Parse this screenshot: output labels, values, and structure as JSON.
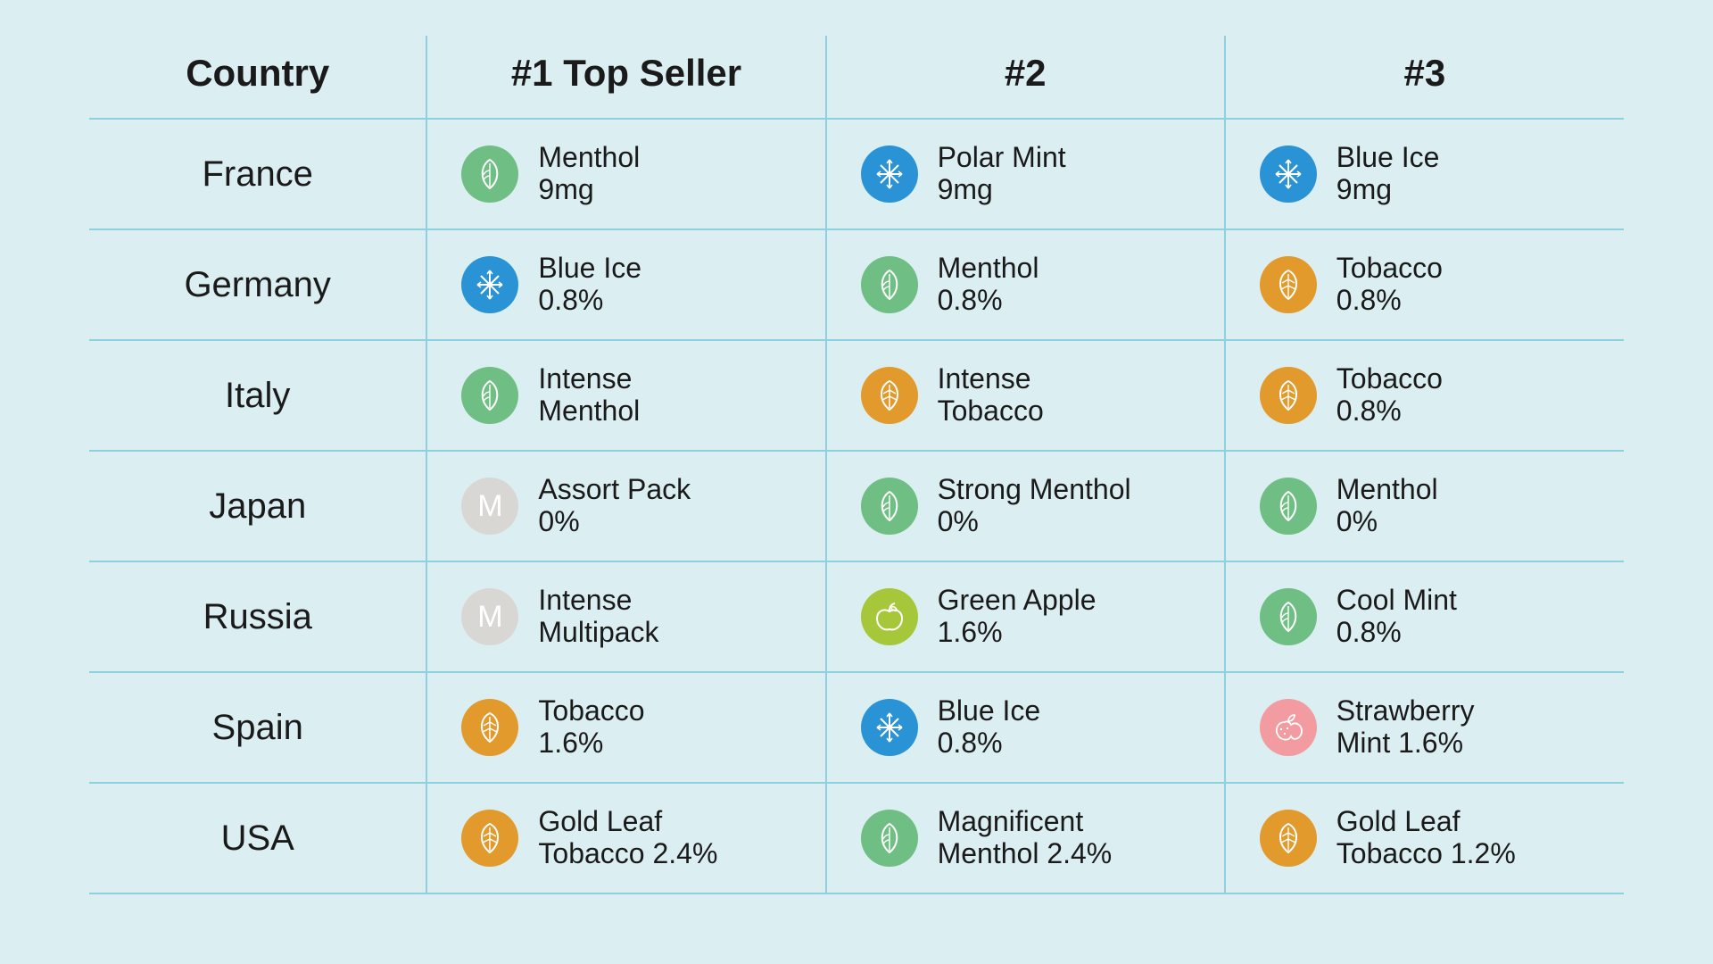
{
  "colors": {
    "background": "#dbeef2",
    "border": "#8ecfe0",
    "text": "#1a1a1a",
    "icon_green": "#6fbe83",
    "icon_blue": "#2a93d6",
    "icon_orange": "#e19a2b",
    "icon_grey": "#d9d7d4",
    "icon_lime": "#a6c739",
    "icon_pink": "#f29ca1",
    "icon_stroke": "#ffffff"
  },
  "headers": {
    "country": "Country",
    "first": "#1 Top Seller",
    "second": "#2",
    "third": "#3"
  },
  "rows": [
    {
      "country": "France",
      "p1": {
        "icon": "leaf",
        "color": "#6fbe83",
        "line1": "Menthol",
        "line2": "9mg"
      },
      "p2": {
        "icon": "snow",
        "color": "#2a93d6",
        "line1": "Polar Mint",
        "line2": "9mg"
      },
      "p3": {
        "icon": "snow",
        "color": "#2a93d6",
        "line1": "Blue Ice",
        "line2": "9mg"
      }
    },
    {
      "country": "Germany",
      "p1": {
        "icon": "snow",
        "color": "#2a93d6",
        "line1": "Blue Ice",
        "line2": "0.8%"
      },
      "p2": {
        "icon": "leaf",
        "color": "#6fbe83",
        "line1": "Menthol",
        "line2": "0.8%"
      },
      "p3": {
        "icon": "tleaf",
        "color": "#e19a2b",
        "line1": "Tobacco",
        "line2": "0.8%"
      }
    },
    {
      "country": "Italy",
      "p1": {
        "icon": "leaf",
        "color": "#6fbe83",
        "line1": "Intense",
        "line2": "Menthol"
      },
      "p2": {
        "icon": "tleaf",
        "color": "#e19a2b",
        "line1": "Intense",
        "line2": "Tobacco"
      },
      "p3": {
        "icon": "tleaf",
        "color": "#e19a2b",
        "line1": "Tobacco",
        "line2": "0.8%"
      }
    },
    {
      "country": "Japan",
      "p1": {
        "icon": "m",
        "color": "#d9d7d4",
        "line1": "Assort Pack",
        "line2": "0%"
      },
      "p2": {
        "icon": "leaf",
        "color": "#6fbe83",
        "line1": "Strong Menthol",
        "line2": "0%"
      },
      "p3": {
        "icon": "leaf",
        "color": "#6fbe83",
        "line1": "Menthol",
        "line2": "0%"
      }
    },
    {
      "country": "Russia",
      "p1": {
        "icon": "m",
        "color": "#d9d7d4",
        "line1": "Intense",
        "line2": "Multipack"
      },
      "p2": {
        "icon": "apple",
        "color": "#a6c739",
        "line1": "Green Apple",
        "line2": "1.6%"
      },
      "p3": {
        "icon": "leaf",
        "color": "#6fbe83",
        "line1": "Cool Mint",
        "line2": "0.8%"
      }
    },
    {
      "country": "Spain",
      "p1": {
        "icon": "tleaf",
        "color": "#e19a2b",
        "line1": "Tobacco",
        "line2": "1.6%"
      },
      "p2": {
        "icon": "snow",
        "color": "#2a93d6",
        "line1": "Blue Ice",
        "line2": "0.8%"
      },
      "p3": {
        "icon": "berry",
        "color": "#f29ca1",
        "line1": "Strawberry",
        "line2": "Mint 1.6%"
      }
    },
    {
      "country": "USA",
      "p1": {
        "icon": "tleaf",
        "color": "#e19a2b",
        "line1": "Gold Leaf",
        "line2": "Tobacco 2.4%"
      },
      "p2": {
        "icon": "leaf",
        "color": "#6fbe83",
        "line1": "Magnificent",
        "line2": "Menthol 2.4%"
      },
      "p3": {
        "icon": "tleaf",
        "color": "#e19a2b",
        "line1": "Gold Leaf",
        "line2": "Tobacco 1.2%"
      }
    }
  ]
}
